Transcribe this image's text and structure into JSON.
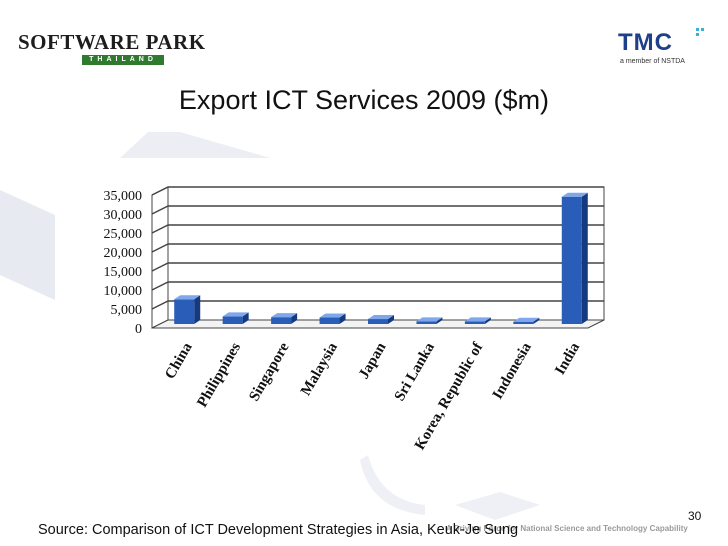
{
  "logos": {
    "left_brand": "SOFTWARE PARK",
    "left_sub": "THAILAND",
    "right_brand": "TMC",
    "right_tagline": "a member of NSTDA"
  },
  "slide": {
    "title": "Export ICT Services 2009 ($m)",
    "page_number": "30",
    "source": "Source:  Comparison of ICT Development Strategies in Asia, Keuk-Je Sung",
    "footer_tagline": "A Driving Force for National Science and Technology Capability"
  },
  "colors": {
    "bar_front": "#2a5db8",
    "bar_top": "#7fa8ec",
    "bar_side": "#163a80",
    "grid": "#444444",
    "decor": "#e6e8ef"
  },
  "chart_data": {
    "type": "bar",
    "title": "Export ICT Services 2009 ($m)",
    "categories": [
      "China",
      "Philippines",
      "Singapore",
      "Malaysia",
      "Japan",
      "Sri Lanka",
      "Korea, Republic of",
      "Indonesia",
      "India"
    ],
    "values": [
      6500,
      2000,
      1800,
      1700,
      1300,
      700,
      700,
      600,
      33500
    ],
    "ylim": [
      0,
      35000
    ],
    "yticks": [
      "0",
      "5,000",
      "10,000",
      "15,000",
      "20,000",
      "25,000",
      "30,000",
      "35,000"
    ],
    "xlabel": "",
    "ylabel": "",
    "grid": true
  }
}
